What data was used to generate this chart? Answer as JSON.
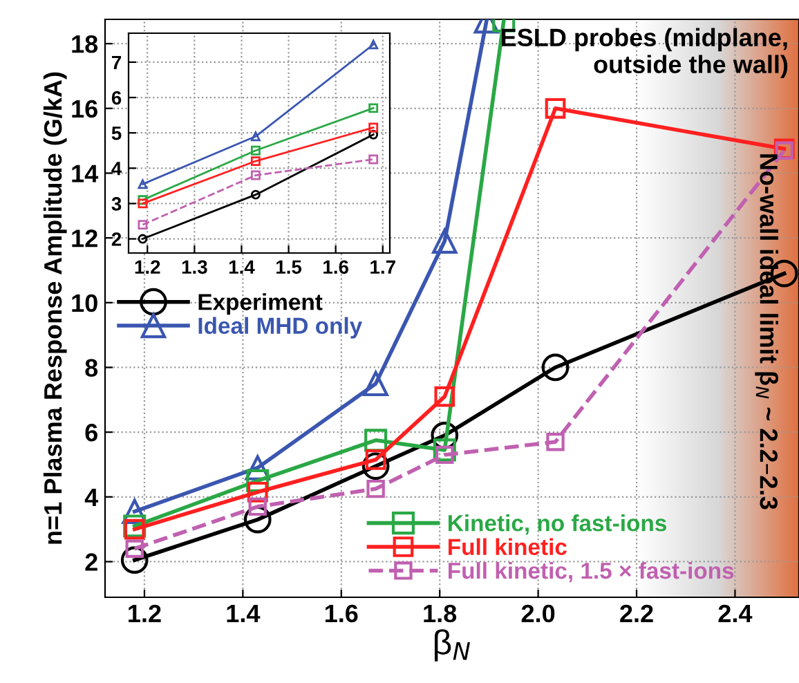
{
  "chart_data": [
    {
      "type": "line",
      "xlabel": "β$_{N}$",
      "ylabel": "n=1 Plasma Response Amplitude (G/kA)",
      "xlim": [
        1.12,
        2.53
      ],
      "ylim": [
        0.9,
        18.75
      ],
      "xticks": [
        {
          "value": 1.2,
          "label": "1.2"
        },
        {
          "value": 1.4,
          "label": "1.4"
        },
        {
          "value": 1.6,
          "label": "1.6"
        },
        {
          "value": 1.8,
          "label": "1.8"
        },
        {
          "value": 2.0,
          "label": "2.0"
        },
        {
          "value": 2.2,
          "label": "2.2"
        },
        {
          "value": 2.4,
          "label": "2.4"
        }
      ],
      "yticks": [
        2,
        4,
        6,
        8,
        10,
        12,
        14,
        16,
        18
      ],
      "grid": true,
      "legend": "left",
      "series": [
        {
          "name": "Experiment",
          "color": "#000000",
          "marker": "circle",
          "line_style": "solid",
          "x": [
            1.18,
            1.43,
            1.67,
            1.81,
            2.035,
            2.5
          ],
          "values": [
            2.05,
            3.3,
            4.95,
            5.9,
            8.0,
            10.9
          ]
        },
        {
          "name": "Ideal MHD only",
          "color": "#3a56b0",
          "marker": "triangle",
          "line_style": "solid",
          "x": [
            1.18,
            1.43,
            1.67,
            1.81,
            1.895
          ],
          "values": [
            3.55,
            4.9,
            7.5,
            11.9,
            18.7
          ]
        },
        {
          "name": "Kinetic, no fast-ions",
          "color": "#2aa845",
          "marker": "square",
          "line_style": "solid",
          "x": [
            1.18,
            1.43,
            1.67,
            1.81,
            1.93
          ],
          "values": [
            3.1,
            4.5,
            5.75,
            5.45,
            18.7
          ]
        },
        {
          "name": "Full kinetic",
          "color": "#ff2020",
          "marker": "square",
          "line_style": "solid",
          "x": [
            1.18,
            1.43,
            1.67,
            1.81,
            2.035,
            2.5
          ],
          "values": [
            3.0,
            4.15,
            5.15,
            7.1,
            16.0,
            14.75
          ]
        },
        {
          "name": "Full kinetic, 1.5 × fast-ions",
          "color": "#c060b0",
          "marker": "square",
          "line_style": "dashed",
          "x": [
            1.18,
            1.43,
            1.67,
            1.81,
            2.035,
            2.5
          ],
          "values": [
            2.4,
            3.7,
            4.25,
            5.3,
            5.7,
            14.7
          ]
        }
      ],
      "bands": [
        {
          "axis": "x",
          "from": 2.2,
          "to": 2.53,
          "label": "No-wall ideal limit β$_{N}$ ~ 2.2–2.3",
          "color": "#e07040"
        }
      ],
      "annotations": [
        "ESLD probes (midplane,\noutside the wall)"
      ]
    },
    {
      "type": "line",
      "xlim": [
        1.16,
        1.715
      ],
      "ylim": [
        1.6,
        7.82
      ],
      "xticks": [
        1.2,
        1.3,
        1.4,
        1.5,
        1.6,
        1.7
      ],
      "yticks": [
        2,
        3,
        4,
        5,
        6,
        7
      ],
      "grid": true,
      "series": [
        {
          "color": "#000000",
          "marker": "circle",
          "line_style": "solid",
          "x": [
            1.19,
            1.43,
            1.68
          ],
          "values": [
            2.0,
            3.25,
            4.95
          ]
        },
        {
          "color": "#3a56b0",
          "marker": "triangle",
          "line_style": "solid",
          "x": [
            1.19,
            1.43,
            1.68
          ],
          "values": [
            3.55,
            4.9,
            7.5
          ]
        },
        {
          "color": "#2aa845",
          "marker": "square",
          "line_style": "solid",
          "x": [
            1.19,
            1.43,
            1.68
          ],
          "values": [
            3.1,
            4.5,
            5.7
          ]
        },
        {
          "color": "#ff2020",
          "marker": "square",
          "line_style": "solid",
          "x": [
            1.19,
            1.43,
            1.68
          ],
          "values": [
            3.0,
            4.2,
            5.15
          ]
        },
        {
          "color": "#c060b0",
          "marker": "square",
          "line_style": "dashed",
          "x": [
            1.19,
            1.43,
            1.68
          ],
          "values": [
            2.4,
            3.8,
            4.25
          ]
        }
      ]
    }
  ]
}
